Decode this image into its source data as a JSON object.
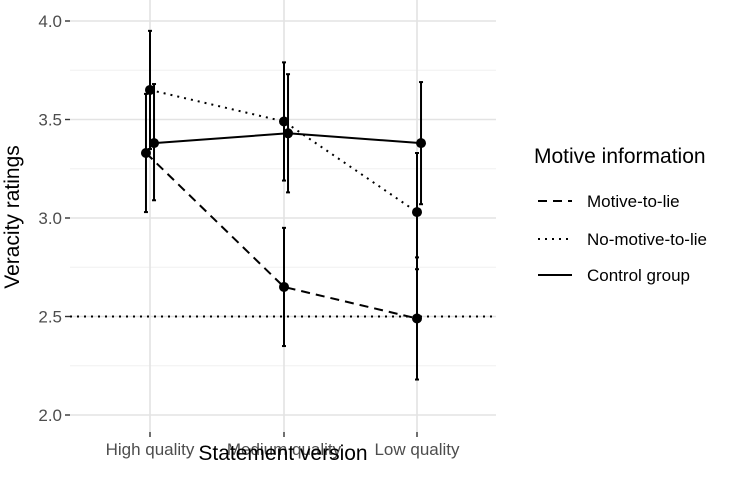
{
  "chart_data": {
    "type": "line",
    "title": "",
    "xlabel": "Statement version",
    "ylabel": "Veracity ratings",
    "categories": [
      "High quality",
      "Medium quality",
      "Low quality"
    ],
    "ylim": [
      1.95,
      4.05
    ],
    "yticks": [
      2.0,
      2.5,
      3.0,
      3.5,
      4.0
    ],
    "ytick_labels": [
      "2.0",
      "2.5",
      "3.0",
      "3.5",
      "4.0"
    ],
    "grid": true,
    "legend": {
      "title": "Motive information",
      "placement": "right"
    },
    "series": [
      {
        "name": "Motive-to-lie",
        "linestyle": "dashed",
        "values": [
          3.33,
          2.65,
          2.49
        ],
        "ci_low": [
          3.03,
          2.35,
          2.18
        ],
        "ci_high": [
          3.63,
          2.95,
          2.8
        ],
        "x_offset": [
          -0.03,
          0.0,
          0.0
        ]
      },
      {
        "name": "No-motive-to-lie",
        "linestyle": "dotted",
        "values": [
          3.65,
          3.49,
          3.03
        ],
        "ci_low": [
          3.35,
          3.19,
          2.74
        ],
        "ci_high": [
          3.95,
          3.79,
          3.33
        ],
        "x_offset": [
          0.0,
          0.0,
          0.0
        ]
      },
      {
        "name": "Control group",
        "linestyle": "solid",
        "values": [
          3.38,
          3.43,
          3.38
        ],
        "ci_low": [
          3.09,
          3.13,
          3.07
        ],
        "ci_high": [
          3.68,
          3.73,
          3.69
        ],
        "x_offset": [
          0.03,
          0.03,
          0.03
        ]
      }
    ],
    "reference_line": {
      "y": 2.5,
      "linestyle": "dotted"
    }
  }
}
